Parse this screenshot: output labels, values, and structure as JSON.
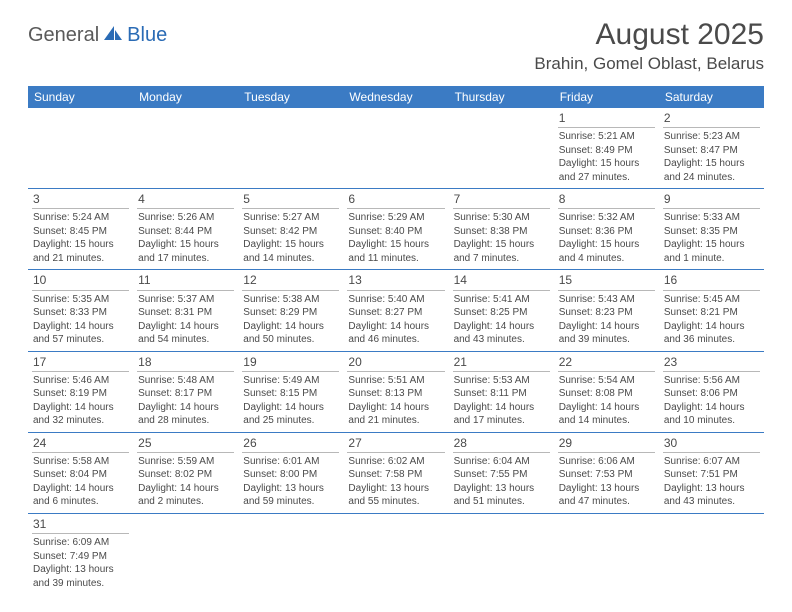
{
  "logo": {
    "text_general": "General",
    "text_blue": "Blue",
    "icon_color": "#2a6bb5"
  },
  "title": {
    "month": "August 2025",
    "location": "Brahin, Gomel Oblast, Belarus",
    "title_fontsize": 30,
    "location_fontsize": 17,
    "title_color": "#4a4a4a"
  },
  "calendar": {
    "header_bg": "#3b7bc4",
    "header_fg": "#ffffff",
    "row_border_color": "#3b7bc4",
    "daynum_border_color": "#b8b8b8",
    "text_color": "#4a4a4a",
    "day_font_size": 10,
    "days": [
      "Sunday",
      "Monday",
      "Tuesday",
      "Wednesday",
      "Thursday",
      "Friday",
      "Saturday"
    ],
    "weeks": [
      [
        null,
        null,
        null,
        null,
        null,
        {
          "n": "1",
          "sr": "Sunrise: 5:21 AM",
          "ss": "Sunset: 8:49 PM",
          "d1": "Daylight: 15 hours",
          "d2": "and 27 minutes."
        },
        {
          "n": "2",
          "sr": "Sunrise: 5:23 AM",
          "ss": "Sunset: 8:47 PM",
          "d1": "Daylight: 15 hours",
          "d2": "and 24 minutes."
        }
      ],
      [
        {
          "n": "3",
          "sr": "Sunrise: 5:24 AM",
          "ss": "Sunset: 8:45 PM",
          "d1": "Daylight: 15 hours",
          "d2": "and 21 minutes."
        },
        {
          "n": "4",
          "sr": "Sunrise: 5:26 AM",
          "ss": "Sunset: 8:44 PM",
          "d1": "Daylight: 15 hours",
          "d2": "and 17 minutes."
        },
        {
          "n": "5",
          "sr": "Sunrise: 5:27 AM",
          "ss": "Sunset: 8:42 PM",
          "d1": "Daylight: 15 hours",
          "d2": "and 14 minutes."
        },
        {
          "n": "6",
          "sr": "Sunrise: 5:29 AM",
          "ss": "Sunset: 8:40 PM",
          "d1": "Daylight: 15 hours",
          "d2": "and 11 minutes."
        },
        {
          "n": "7",
          "sr": "Sunrise: 5:30 AM",
          "ss": "Sunset: 8:38 PM",
          "d1": "Daylight: 15 hours",
          "d2": "and 7 minutes."
        },
        {
          "n": "8",
          "sr": "Sunrise: 5:32 AM",
          "ss": "Sunset: 8:36 PM",
          "d1": "Daylight: 15 hours",
          "d2": "and 4 minutes."
        },
        {
          "n": "9",
          "sr": "Sunrise: 5:33 AM",
          "ss": "Sunset: 8:35 PM",
          "d1": "Daylight: 15 hours",
          "d2": "and 1 minute."
        }
      ],
      [
        {
          "n": "10",
          "sr": "Sunrise: 5:35 AM",
          "ss": "Sunset: 8:33 PM",
          "d1": "Daylight: 14 hours",
          "d2": "and 57 minutes."
        },
        {
          "n": "11",
          "sr": "Sunrise: 5:37 AM",
          "ss": "Sunset: 8:31 PM",
          "d1": "Daylight: 14 hours",
          "d2": "and 54 minutes."
        },
        {
          "n": "12",
          "sr": "Sunrise: 5:38 AM",
          "ss": "Sunset: 8:29 PM",
          "d1": "Daylight: 14 hours",
          "d2": "and 50 minutes."
        },
        {
          "n": "13",
          "sr": "Sunrise: 5:40 AM",
          "ss": "Sunset: 8:27 PM",
          "d1": "Daylight: 14 hours",
          "d2": "and 46 minutes."
        },
        {
          "n": "14",
          "sr": "Sunrise: 5:41 AM",
          "ss": "Sunset: 8:25 PM",
          "d1": "Daylight: 14 hours",
          "d2": "and 43 minutes."
        },
        {
          "n": "15",
          "sr": "Sunrise: 5:43 AM",
          "ss": "Sunset: 8:23 PM",
          "d1": "Daylight: 14 hours",
          "d2": "and 39 minutes."
        },
        {
          "n": "16",
          "sr": "Sunrise: 5:45 AM",
          "ss": "Sunset: 8:21 PM",
          "d1": "Daylight: 14 hours",
          "d2": "and 36 minutes."
        }
      ],
      [
        {
          "n": "17",
          "sr": "Sunrise: 5:46 AM",
          "ss": "Sunset: 8:19 PM",
          "d1": "Daylight: 14 hours",
          "d2": "and 32 minutes."
        },
        {
          "n": "18",
          "sr": "Sunrise: 5:48 AM",
          "ss": "Sunset: 8:17 PM",
          "d1": "Daylight: 14 hours",
          "d2": "and 28 minutes."
        },
        {
          "n": "19",
          "sr": "Sunrise: 5:49 AM",
          "ss": "Sunset: 8:15 PM",
          "d1": "Daylight: 14 hours",
          "d2": "and 25 minutes."
        },
        {
          "n": "20",
          "sr": "Sunrise: 5:51 AM",
          "ss": "Sunset: 8:13 PM",
          "d1": "Daylight: 14 hours",
          "d2": "and 21 minutes."
        },
        {
          "n": "21",
          "sr": "Sunrise: 5:53 AM",
          "ss": "Sunset: 8:11 PM",
          "d1": "Daylight: 14 hours",
          "d2": "and 17 minutes."
        },
        {
          "n": "22",
          "sr": "Sunrise: 5:54 AM",
          "ss": "Sunset: 8:08 PM",
          "d1": "Daylight: 14 hours",
          "d2": "and 14 minutes."
        },
        {
          "n": "23",
          "sr": "Sunrise: 5:56 AM",
          "ss": "Sunset: 8:06 PM",
          "d1": "Daylight: 14 hours",
          "d2": "and 10 minutes."
        }
      ],
      [
        {
          "n": "24",
          "sr": "Sunrise: 5:58 AM",
          "ss": "Sunset: 8:04 PM",
          "d1": "Daylight: 14 hours",
          "d2": "and 6 minutes."
        },
        {
          "n": "25",
          "sr": "Sunrise: 5:59 AM",
          "ss": "Sunset: 8:02 PM",
          "d1": "Daylight: 14 hours",
          "d2": "and 2 minutes."
        },
        {
          "n": "26",
          "sr": "Sunrise: 6:01 AM",
          "ss": "Sunset: 8:00 PM",
          "d1": "Daylight: 13 hours",
          "d2": "and 59 minutes."
        },
        {
          "n": "27",
          "sr": "Sunrise: 6:02 AM",
          "ss": "Sunset: 7:58 PM",
          "d1": "Daylight: 13 hours",
          "d2": "and 55 minutes."
        },
        {
          "n": "28",
          "sr": "Sunrise: 6:04 AM",
          "ss": "Sunset: 7:55 PM",
          "d1": "Daylight: 13 hours",
          "d2": "and 51 minutes."
        },
        {
          "n": "29",
          "sr": "Sunrise: 6:06 AM",
          "ss": "Sunset: 7:53 PM",
          "d1": "Daylight: 13 hours",
          "d2": "and 47 minutes."
        },
        {
          "n": "30",
          "sr": "Sunrise: 6:07 AM",
          "ss": "Sunset: 7:51 PM",
          "d1": "Daylight: 13 hours",
          "d2": "and 43 minutes."
        }
      ],
      [
        {
          "n": "31",
          "sr": "Sunrise: 6:09 AM",
          "ss": "Sunset: 7:49 PM",
          "d1": "Daylight: 13 hours",
          "d2": "and 39 minutes."
        },
        null,
        null,
        null,
        null,
        null,
        null
      ]
    ]
  }
}
